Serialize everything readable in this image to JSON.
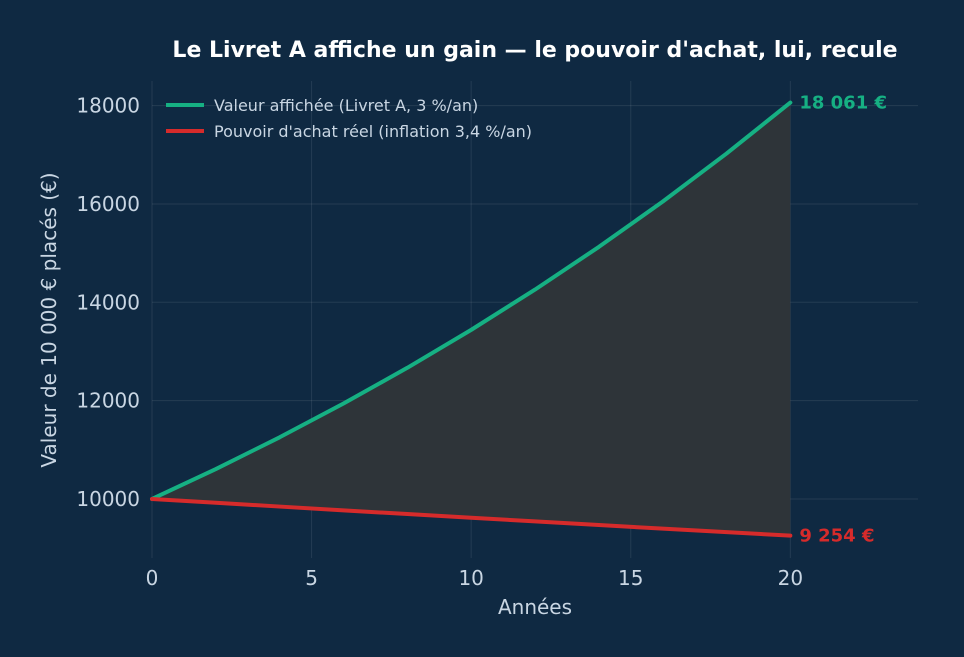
{
  "chart_data": {
    "type": "line",
    "title": "Le Livret A affiche un gain — le pouvoir d'achat, lui, recule",
    "xlabel": "Années",
    "ylabel": "Valeur de 10 000 € placés (€)",
    "xlim": [
      0,
      24
    ],
    "ylim": [
      8800,
      18500
    ],
    "xticks": [
      0,
      5,
      10,
      15,
      20
    ],
    "yticks": [
      10000,
      12000,
      14000,
      16000,
      18000
    ],
    "grid": true,
    "legend_position": "top-left",
    "fill_between_series": true,
    "fill_color": "#2e3439",
    "x": [
      0,
      2,
      4,
      6,
      8,
      10,
      12,
      14,
      16,
      18,
      20
    ],
    "series": [
      {
        "name": "Valeur affichée (Livret A, 3 %/an)",
        "color": "#16b083",
        "values": [
          10000,
          10609,
          11255,
          11941,
          12668,
          13439,
          14258,
          15126,
          16047,
          17024,
          18061
        ],
        "end_label": "18 061 €"
      },
      {
        "name": "Pouvoir d'achat réel (inflation 3,4 %/an)",
        "color": "#d62b2b",
        "values": [
          10000,
          9923,
          9846,
          9769,
          9694,
          9619,
          9544,
          9470,
          9397,
          9325,
          9254
        ],
        "end_label": "9 254 €"
      }
    ]
  }
}
